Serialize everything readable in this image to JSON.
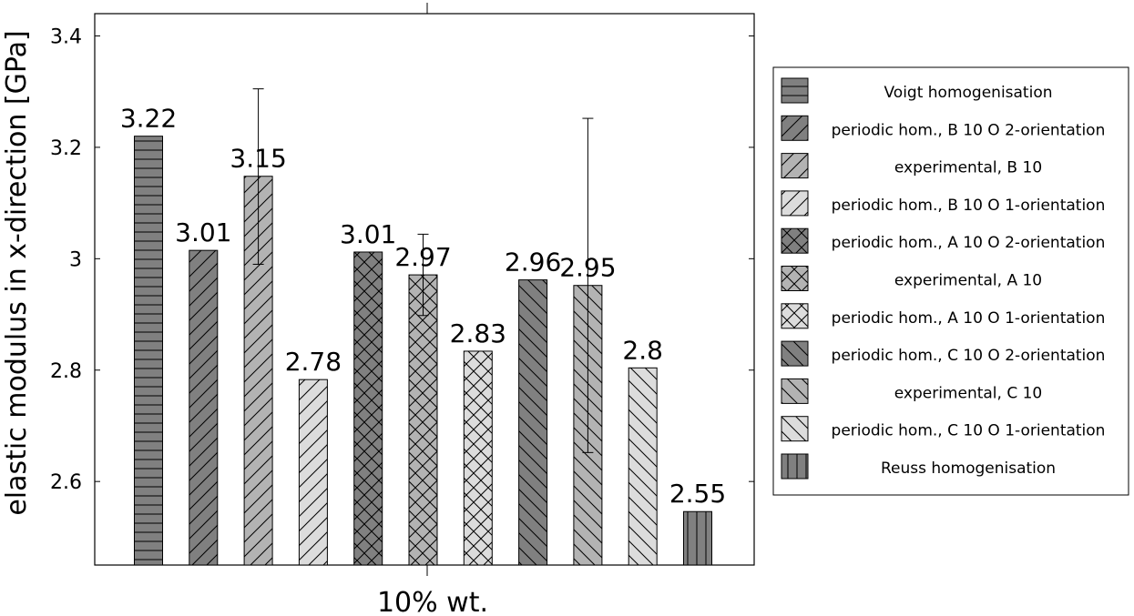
{
  "chart_data": {
    "type": "bar",
    "title": "",
    "xlabel": "10% wt.",
    "ylabel": "elastic modulus in x-direction [GPa]",
    "ylim": [
      2.45,
      3.44
    ],
    "yticks": [
      2.6,
      2.8,
      3,
      3.2,
      3.4
    ],
    "ytick_labels": [
      "2.6",
      "2.8",
      "3",
      "3.2",
      "3.4"
    ],
    "categories": [
      "10% wt."
    ],
    "legend_position": "right",
    "grid": false,
    "series": [
      {
        "name": "Voigt homogenisation",
        "value": 3.22,
        "label": "3.22",
        "fill": "#808080",
        "pattern": "horizontal"
      },
      {
        "name": "periodic hom., B 10 O 2-orientation",
        "value": 3.015,
        "label": "3.01",
        "fill": "#808080",
        "pattern": "north-east"
      },
      {
        "name": "experimental, B 10",
        "value": 3.148,
        "label": "3.15",
        "fill": "#b3b3b3",
        "pattern": "north-east",
        "error": [
          2.99,
          3.305
        ]
      },
      {
        "name": "periodic hom., B 10 O 1-orientation",
        "value": 2.783,
        "label": "2.78",
        "fill": "#dcdcdc",
        "pattern": "north-east"
      },
      {
        "name": "periodic hom., A 10 O 2-orientation",
        "value": 3.012,
        "label": "3.01",
        "fill": "#808080",
        "pattern": "crosshatch"
      },
      {
        "name": "experimental, A 10",
        "value": 2.971,
        "label": "2.97",
        "fill": "#b3b3b3",
        "pattern": "crosshatch",
        "error": [
          2.898,
          3.044
        ]
      },
      {
        "name": "periodic hom., A 10 O 1-orientation",
        "value": 2.834,
        "label": "2.83",
        "fill": "#dcdcdc",
        "pattern": "crosshatch"
      },
      {
        "name": "periodic hom., C 10 O 2-orientation",
        "value": 2.962,
        "label": "2.96",
        "fill": "#808080",
        "pattern": "north-west"
      },
      {
        "name": "experimental, C 10",
        "value": 2.952,
        "label": "2.95",
        "fill": "#b3b3b3",
        "pattern": "north-west",
        "error": [
          2.652,
          3.252
        ]
      },
      {
        "name": "periodic hom., C 10 O 1-orientation",
        "value": 2.804,
        "label": "2.8",
        "fill": "#dcdcdc",
        "pattern": "north-west"
      },
      {
        "name": "Reuss homogenisation",
        "value": 2.546,
        "label": "2.55",
        "fill": "#808080",
        "pattern": "vertical"
      }
    ]
  }
}
